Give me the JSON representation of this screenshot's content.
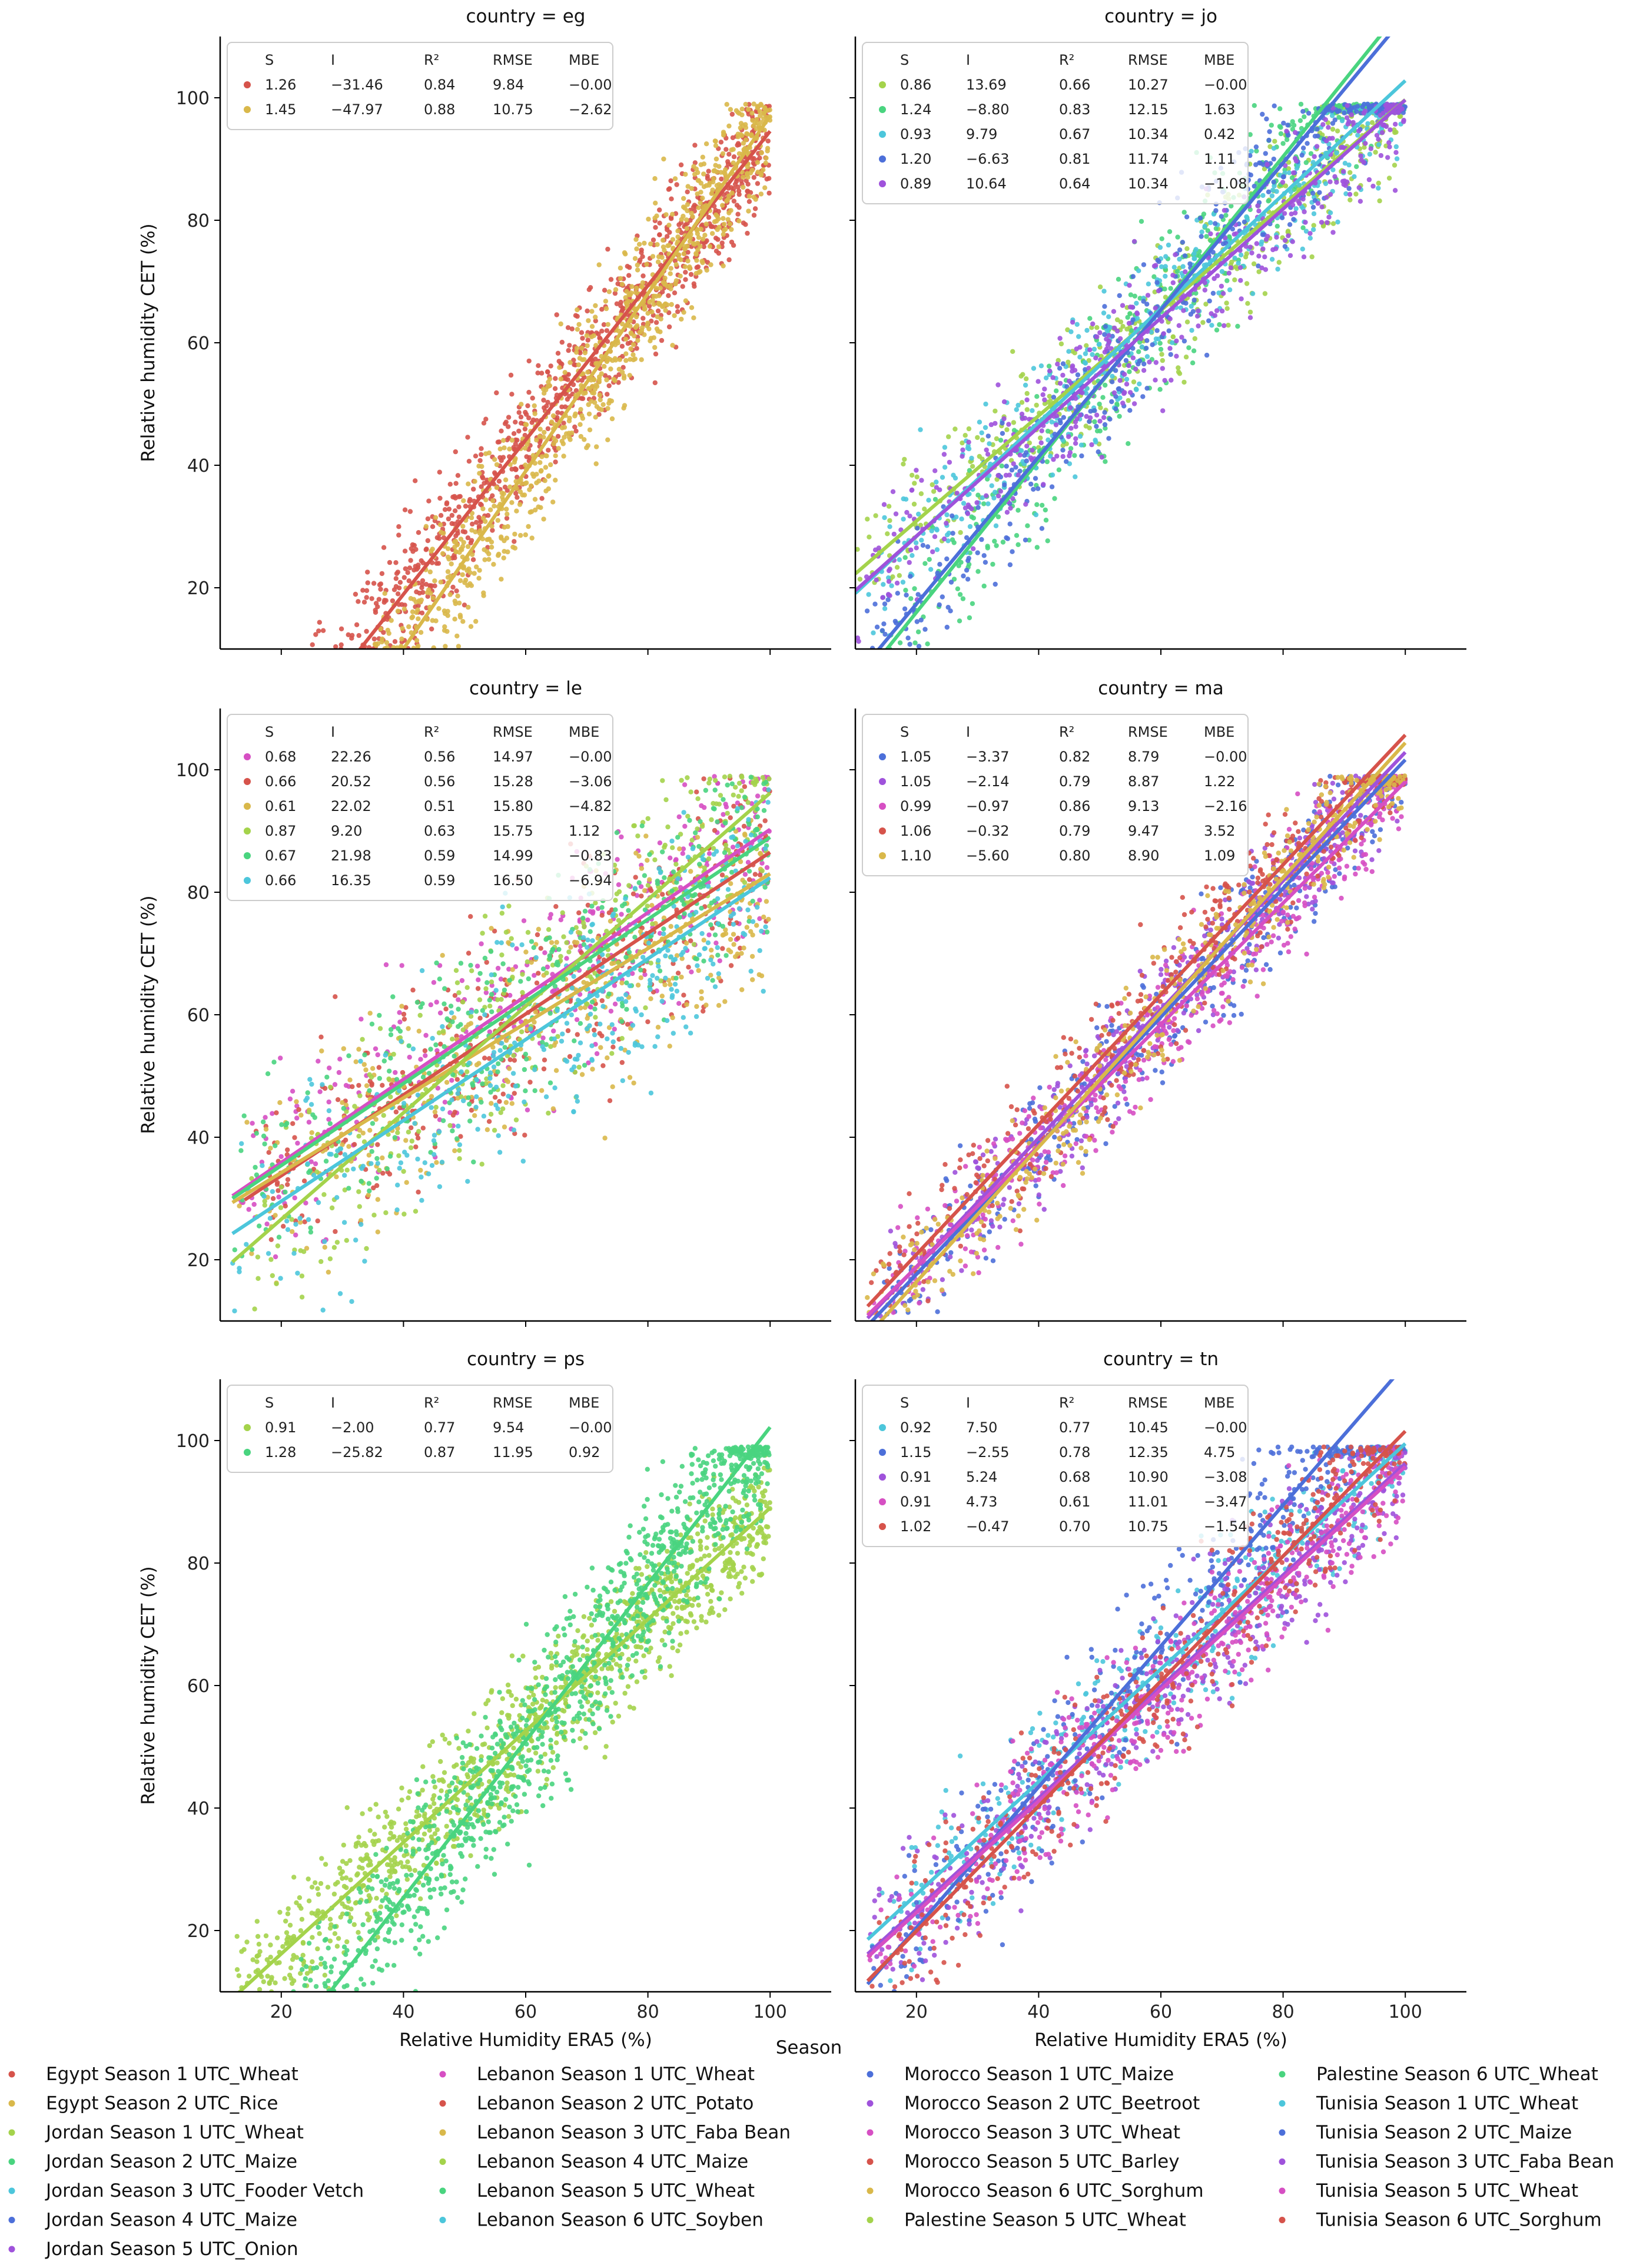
{
  "figure": {
    "x_axis_label": "Relative Humidity ERA5 (%)",
    "y_axis_label": "Relative humidity CET (%)",
    "legend_title": "Season",
    "stats_headers": [
      "S",
      "I",
      "R²",
      "RMSE",
      "MBE"
    ]
  },
  "chart_data": [
    {
      "type": "scatter",
      "title": "country = eg",
      "xlim": [
        10,
        110
      ],
      "ylim": [
        10,
        110
      ],
      "xticks": [
        "20",
        "40",
        "60",
        "80",
        "100"
      ],
      "yticks": [
        "20",
        "40",
        "60",
        "80",
        "100"
      ],
      "series": [
        {
          "name": "Egypt Season 1 UTC_Wheat",
          "color": "#d6534b",
          "S": "1.26",
          "I": "−31.46",
          "R2": "0.84",
          "RMSE": "9.84",
          "MBE": "−0.00",
          "x_range": [
            10,
            100
          ]
        },
        {
          "name": "Egypt Season 2 UTC_Rice",
          "color": "#d9b84a",
          "S": "1.45",
          "I": "−47.97",
          "R2": "0.88",
          "RMSE": "10.75",
          "MBE": "−2.62",
          "x_range": [
            13,
            100
          ]
        }
      ]
    },
    {
      "type": "scatter",
      "title": "country = jo",
      "xlim": [
        10,
        110
      ],
      "ylim": [
        10,
        110
      ],
      "xticks": [
        "20",
        "40",
        "60",
        "80",
        "100"
      ],
      "yticks": [
        "20",
        "40",
        "60",
        "80",
        "100"
      ],
      "series": [
        {
          "name": "Jordan Season 1 UTC_Wheat",
          "color": "#a4d34b",
          "S": "0.86",
          "I": "13.69",
          "R2": "0.66",
          "RMSE": "10.27",
          "MBE": "−0.00",
          "x_range": [
            10,
            100
          ]
        },
        {
          "name": "Jordan Season 2 UTC_Maize",
          "color": "#49d47f",
          "S": "1.24",
          "I": "−8.80",
          "R2": "0.83",
          "RMSE": "12.15",
          "MBE": "1.63",
          "x_range": [
            10,
            100
          ]
        },
        {
          "name": "Jordan Season 3 UTC_Fooder Vetch",
          "color": "#4cc6db",
          "S": "0.93",
          "I": "9.79",
          "R2": "0.67",
          "RMSE": "10.34",
          "MBE": "0.42",
          "x_range": [
            10,
            100
          ]
        },
        {
          "name": "Jordan Season 4 UTC_Maize",
          "color": "#4c6fd9",
          "S": "1.20",
          "I": "−6.63",
          "R2": "0.81",
          "RMSE": "11.74",
          "MBE": "1.11",
          "x_range": [
            10,
            100
          ]
        },
        {
          "name": "Jordan Season 5 UTC_Onion",
          "color": "#9f52db",
          "S": "0.89",
          "I": "10.64",
          "R2": "0.64",
          "RMSE": "10.34",
          "MBE": "−1.08",
          "x_range": [
            10,
            100
          ]
        }
      ]
    },
    {
      "type": "scatter",
      "title": "country = le",
      "xlim": [
        10,
        110
      ],
      "ylim": [
        10,
        110
      ],
      "xticks": [
        "20",
        "40",
        "60",
        "80",
        "100"
      ],
      "yticks": [
        "20",
        "40",
        "60",
        "80",
        "100"
      ],
      "series": [
        {
          "name": "Lebanon Season 1 UTC_Wheat",
          "color": "#d64fc3",
          "S": "0.68",
          "I": "22.26",
          "R2": "0.56",
          "RMSE": "14.97",
          "MBE": "−0.00",
          "x_range": [
            12,
            100
          ]
        },
        {
          "name": "Lebanon Season 2 UTC_Potato",
          "color": "#d6534b",
          "S": "0.66",
          "I": "20.52",
          "R2": "0.56",
          "RMSE": "15.28",
          "MBE": "−3.06",
          "x_range": [
            14,
            100
          ]
        },
        {
          "name": "Lebanon Season 3 UTC_Faba Bean",
          "color": "#d9b84a",
          "S": "0.61",
          "I": "22.02",
          "R2": "0.51",
          "RMSE": "15.80",
          "MBE": "−4.82",
          "x_range": [
            12,
            100
          ]
        },
        {
          "name": "Lebanon Season 4 UTC_Maize",
          "color": "#a4d34b",
          "S": "0.87",
          "I": "9.20",
          "R2": "0.63",
          "RMSE": "15.75",
          "MBE": "1.12",
          "x_range": [
            12,
            100
          ]
        },
        {
          "name": "Lebanon Season 5 UTC_Wheat",
          "color": "#49d47f",
          "S": "0.67",
          "I": "21.98",
          "R2": "0.59",
          "RMSE": "14.99",
          "MBE": "−0.83",
          "x_range": [
            12,
            100
          ]
        },
        {
          "name": "Lebanon Season 6 UTC_Soyben",
          "color": "#4cc6db",
          "S": "0.66",
          "I": "16.35",
          "R2": "0.59",
          "RMSE": "16.50",
          "MBE": "−6.94",
          "x_range": [
            12,
            100
          ]
        }
      ]
    },
    {
      "type": "scatter",
      "title": "country = ma",
      "xlim": [
        10,
        110
      ],
      "ylim": [
        10,
        110
      ],
      "xticks": [
        "20",
        "40",
        "60",
        "80",
        "100"
      ],
      "yticks": [
        "20",
        "40",
        "60",
        "80",
        "100"
      ],
      "series": [
        {
          "name": "Morocco Season 1 UTC_Maize",
          "color": "#4c6fd9",
          "S": "1.05",
          "I": "−3.37",
          "R2": "0.82",
          "RMSE": "8.79",
          "MBE": "−0.00",
          "x_range": [
            12,
            100
          ]
        },
        {
          "name": "Morocco Season 2 UTC_Beetroot",
          "color": "#9f52db",
          "S": "1.05",
          "I": "−2.14",
          "R2": "0.79",
          "RMSE": "8.87",
          "MBE": "1.22",
          "x_range": [
            12,
            100
          ]
        },
        {
          "name": "Morocco Season 3 UTC_Wheat",
          "color": "#d64fc3",
          "S": "0.99",
          "I": "−0.97",
          "R2": "0.86",
          "RMSE": "9.13",
          "MBE": "−2.16",
          "x_range": [
            12,
            100
          ]
        },
        {
          "name": "Morocco Season 5 UTC_Barley",
          "color": "#d6534b",
          "S": "1.06",
          "I": "−0.32",
          "R2": "0.79",
          "RMSE": "9.47",
          "MBE": "3.52",
          "x_range": [
            12,
            100
          ]
        },
        {
          "name": "Morocco Season 6 UTC_Sorghum",
          "color": "#d9b84a",
          "S": "1.10",
          "I": "−5.60",
          "R2": "0.80",
          "RMSE": "8.90",
          "MBE": "1.09",
          "x_range": [
            10,
            100
          ]
        }
      ]
    },
    {
      "type": "scatter",
      "title": "country = ps",
      "xlim": [
        10,
        110
      ],
      "ylim": [
        10,
        110
      ],
      "xticks": [
        "20",
        "40",
        "60",
        "80",
        "100"
      ],
      "yticks": [
        "20",
        "40",
        "60",
        "80",
        "100"
      ],
      "series": [
        {
          "name": "Palestine Season 5 UTC_Wheat",
          "color": "#a4d34b",
          "S": "0.91",
          "I": "−2.00",
          "R2": "0.77",
          "RMSE": "9.54",
          "MBE": "−0.00",
          "x_range": [
            12,
            100
          ]
        },
        {
          "name": "Palestine Season 6 UTC_Wheat",
          "color": "#49d47f",
          "S": "1.28",
          "I": "−25.82",
          "R2": "0.87",
          "RMSE": "11.95",
          "MBE": "0.92",
          "x_range": [
            19,
            100
          ]
        }
      ]
    },
    {
      "type": "scatter",
      "title": "country = tn",
      "xlim": [
        10,
        110
      ],
      "ylim": [
        10,
        110
      ],
      "xticks": [
        "20",
        "40",
        "60",
        "80",
        "100"
      ],
      "yticks": [
        "20",
        "40",
        "60",
        "80",
        "100"
      ],
      "series": [
        {
          "name": "Tunisia Season 1 UTC_Wheat",
          "color": "#4cc6db",
          "S": "0.92",
          "I": "7.50",
          "R2": "0.77",
          "RMSE": "10.45",
          "MBE": "−0.00",
          "x_range": [
            12,
            100
          ]
        },
        {
          "name": "Tunisia Season 2 UTC_Maize",
          "color": "#4c6fd9",
          "S": "1.15",
          "I": "−2.55",
          "R2": "0.78",
          "RMSE": "12.35",
          "MBE": "4.75",
          "x_range": [
            12,
            100
          ]
        },
        {
          "name": "Tunisia Season 3 UTC_Faba Bean",
          "color": "#9f52db",
          "S": "0.91",
          "I": "5.24",
          "R2": "0.68",
          "RMSE": "10.90",
          "MBE": "−3.08",
          "x_range": [
            12,
            100
          ]
        },
        {
          "name": "Tunisia Season 5 UTC_Wheat",
          "color": "#d64fc3",
          "S": "0.91",
          "I": "4.73",
          "R2": "0.61",
          "RMSE": "11.01",
          "MBE": "−3.47",
          "x_range": [
            12,
            100
          ]
        },
        {
          "name": "Tunisia Season 6 UTC_Sorghum",
          "color": "#d6534b",
          "S": "1.02",
          "I": "−0.47",
          "R2": "0.70",
          "RMSE": "10.75",
          "MBE": "−1.54",
          "x_range": [
            12,
            100
          ]
        }
      ]
    }
  ],
  "legend": {
    "entries": [
      {
        "label": "Egypt Season 1 UTC_Wheat",
        "color": "#d6534b"
      },
      {
        "label": "Egypt Season 2 UTC_Rice",
        "color": "#d9b84a"
      },
      {
        "label": "Jordan Season 1 UTC_Wheat",
        "color": "#a4d34b"
      },
      {
        "label": "Jordan Season 2 UTC_Maize",
        "color": "#49d47f"
      },
      {
        "label": "Jordan Season 3 UTC_Fooder Vetch",
        "color": "#4cc6db"
      },
      {
        "label": "Jordan Season 4 UTC_Maize",
        "color": "#4c6fd9"
      },
      {
        "label": "Jordan Season 5 UTC_Onion",
        "color": "#9f52db"
      },
      {
        "label": "Lebanon Season 1 UTC_Wheat",
        "color": "#d64fc3"
      },
      {
        "label": "Lebanon Season 2 UTC_Potato",
        "color": "#d6534b"
      },
      {
        "label": "Lebanon Season 3 UTC_Faba Bean",
        "color": "#d9b84a"
      },
      {
        "label": "Lebanon Season 4 UTC_Maize",
        "color": "#a4d34b"
      },
      {
        "label": "Lebanon Season 5 UTC_Wheat",
        "color": "#49d47f"
      },
      {
        "label": "Lebanon Season 6 UTC_Soyben",
        "color": "#4cc6db"
      },
      {
        "label": "Morocco Season 1 UTC_Maize",
        "color": "#4c6fd9"
      },
      {
        "label": "Morocco Season 2 UTC_Beetroot",
        "color": "#9f52db"
      },
      {
        "label": "Morocco Season 3 UTC_Wheat",
        "color": "#d64fc3"
      },
      {
        "label": "Morocco Season 5 UTC_Barley",
        "color": "#d6534b"
      },
      {
        "label": "Morocco Season 6 UTC_Sorghum",
        "color": "#d9b84a"
      },
      {
        "label": "Palestine Season 5 UTC_Wheat",
        "color": "#a4d34b"
      },
      {
        "label": "Palestine Season 6 UTC_Wheat",
        "color": "#49d47f"
      },
      {
        "label": "Tunisia Season 1 UTC_Wheat",
        "color": "#4cc6db"
      },
      {
        "label": "Tunisia Season 2 UTC_Maize",
        "color": "#4c6fd9"
      },
      {
        "label": "Tunisia Season 3 UTC_Faba Bean",
        "color": "#9f52db"
      },
      {
        "label": "Tunisia Season 5 UTC_Wheat",
        "color": "#d64fc3"
      },
      {
        "label": "Tunisia Season 6 UTC_Sorghum",
        "color": "#d6534b"
      }
    ]
  }
}
